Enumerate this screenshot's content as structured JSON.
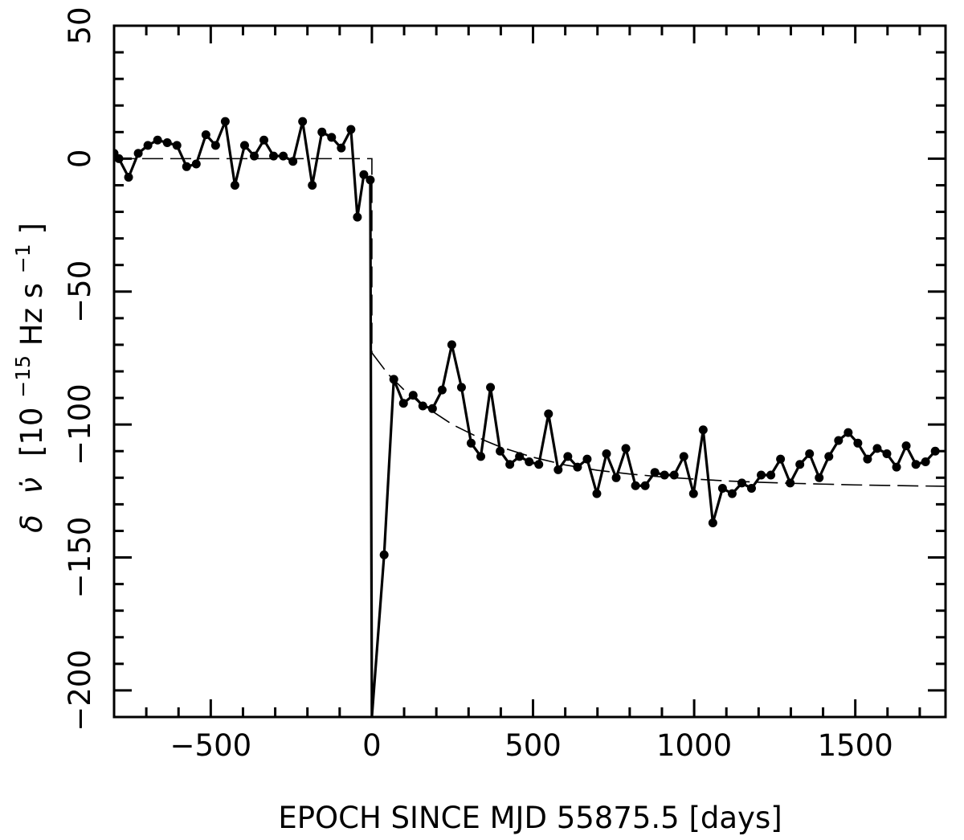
{
  "chart_data": {
    "type": "line",
    "title": "",
    "xlabel": "EPOCH SINCE MJD 55875.5 [days]",
    "ylabel": {
      "prefix": "δ",
      "symbol": "ν̇",
      "unit_open": "[10",
      "unit_exp": "−15",
      "unit_mid": " Hz s",
      "unit_exp2": "−1",
      "unit_close": "]"
    },
    "xlim": [
      -800,
      1780
    ],
    "ylim": [
      -210,
      50
    ],
    "x_ticks": [
      -500,
      0,
      500,
      1000,
      1500
    ],
    "x_tick_labels": [
      "−500",
      "0",
      "500",
      "1000",
      "1500"
    ],
    "y_ticks": [
      50,
      0,
      -50,
      -100,
      -150,
      -200
    ],
    "y_tick_labels": [
      "50",
      "0",
      "−50",
      "−100",
      "−150",
      "−200"
    ],
    "grid": false,
    "legend": "none",
    "series": [
      {
        "style": "solid-with-markers",
        "x": [
          -800,
          -785,
          -755,
          -725,
          -695,
          -665,
          -635,
          -605,
          -575,
          -545,
          -515,
          -485,
          -455,
          -425,
          -395,
          -365,
          -335,
          -305,
          -275,
          -245,
          -215,
          -185,
          -155,
          -125,
          -95,
          -65,
          -45,
          -25,
          -5,
          0,
          38,
          68,
          98,
          128,
          158,
          188,
          218,
          248,
          278,
          308,
          338,
          368,
          398,
          428,
          458,
          488,
          518,
          548,
          578,
          608,
          638,
          668,
          698,
          728,
          758,
          788,
          818,
          848,
          878,
          908,
          938,
          968,
          998,
          1028,
          1058,
          1088,
          1118,
          1148,
          1178,
          1208,
          1238,
          1268,
          1298,
          1328,
          1358,
          1388,
          1418,
          1448,
          1478,
          1508,
          1538,
          1568,
          1598,
          1628,
          1658,
          1688,
          1718,
          1748
        ],
        "y": [
          2,
          0,
          -7,
          2,
          5,
          7,
          6,
          5,
          -3,
          -2,
          9,
          5,
          14,
          -10,
          5,
          1,
          7,
          1,
          1,
          -1,
          14,
          -10,
          10,
          8,
          4,
          11,
          -22,
          -6,
          -8,
          -210,
          -149,
          -83,
          -92,
          -89,
          -93,
          -94,
          -87,
          -70,
          -86,
          -107,
          -112,
          -86,
          -110,
          -115,
          -112,
          -114,
          -115,
          -96,
          -117,
          -112,
          -116,
          -113,
          -126,
          -111,
          -120,
          -109,
          -123,
          -123,
          -118,
          -119,
          -119,
          -112,
          -126,
          -102,
          -137,
          -124,
          -126,
          -122,
          -124,
          -119,
          -119,
          -113,
          -122,
          -115,
          -111,
          -120,
          -112,
          -106,
          -103,
          -107,
          -113,
          -109,
          -111,
          -116,
          -108,
          -115,
          -114,
          -110
        ],
        "markers_omitted_at_x": [
          0
        ]
      },
      {
        "style": "dashed-model",
        "pre_glitch": {
          "x": [
            -800,
            0
          ],
          "y": [
            0,
            0
          ]
        },
        "glitch_drop_to": -73,
        "post_glitch": {
          "x": [
            0,
            50,
            100,
            150,
            200,
            250,
            300,
            350,
            400,
            500,
            600,
            700,
            800,
            900,
            1000,
            1100,
            1200,
            1300,
            1400,
            1500,
            1600,
            1700,
            1780
          ],
          "y": [
            -73,
            -81,
            -87,
            -92,
            -96,
            -100,
            -103,
            -106,
            -108.5,
            -112.3,
            -115.2,
            -117.2,
            -118.6,
            -119.7,
            -120.5,
            -121.2,
            -121.7,
            -122.1,
            -122.4,
            -122.7,
            -122.9,
            -123.1,
            -123.2
          ]
        }
      }
    ],
    "colors": {
      "line": "#000000",
      "background": "#ffffff"
    }
  }
}
